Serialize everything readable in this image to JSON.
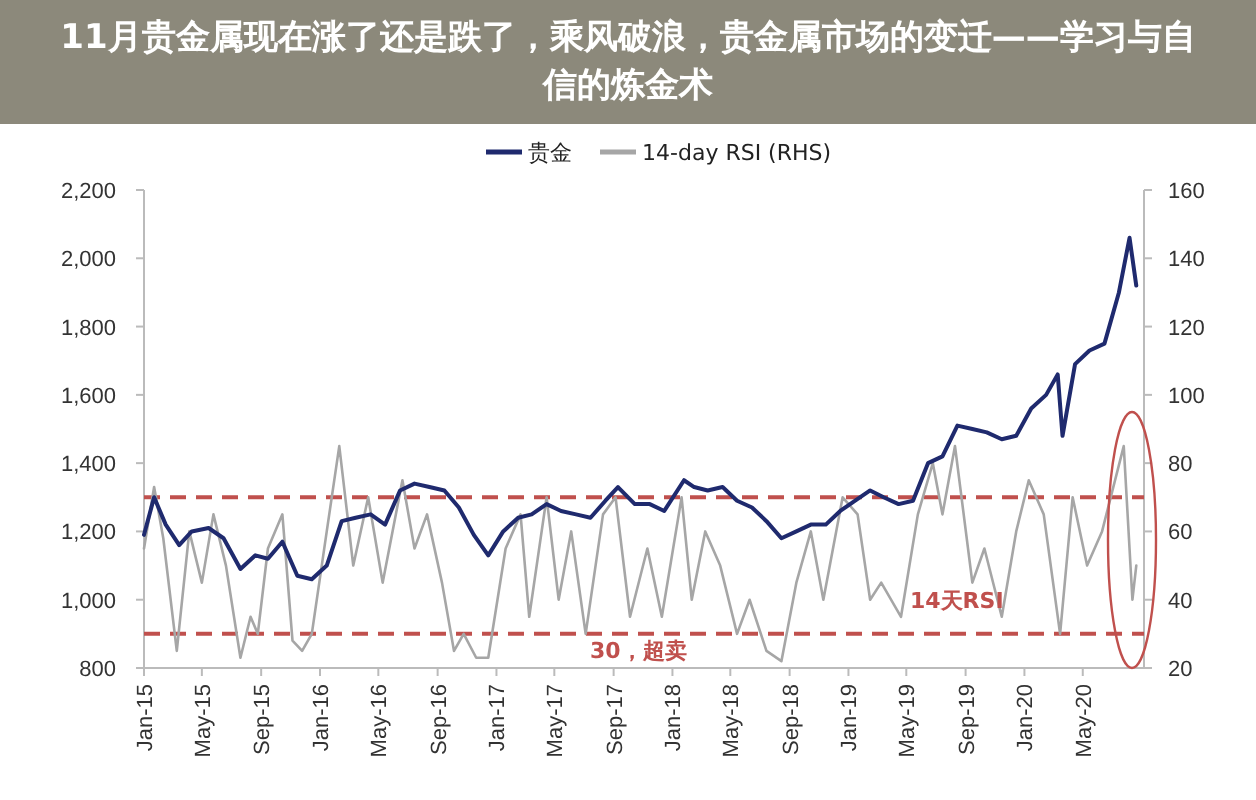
{
  "chart_data": {
    "type": "line",
    "title": "11月贵金属现在涨了还是跌了，乘风破浪，贵金属市场的变迁——学习与自信的炼金术",
    "series": [
      {
        "name": "贵金",
        "color": "#1f2a6e",
        "x": [
          "2015-01-01",
          "2015-01-22",
          "2015-02-15",
          "2015-03-15",
          "2015-04-10",
          "2015-05-15",
          "2015-06-15",
          "2015-07-20",
          "2015-08-20",
          "2015-09-15",
          "2015-10-15",
          "2015-11-15",
          "2015-12-15",
          "2016-01-15",
          "2016-02-15",
          "2016-03-15",
          "2016-04-15",
          "2016-05-15",
          "2016-06-15",
          "2016-07-15",
          "2016-08-15",
          "2016-09-15",
          "2016-10-15",
          "2016-11-15",
          "2016-12-15",
          "2017-01-15",
          "2017-02-15",
          "2017-03-15",
          "2017-04-15",
          "2017-05-15",
          "2017-06-15",
          "2017-07-15",
          "2017-08-15",
          "2017-09-10",
          "2017-10-15",
          "2017-11-15",
          "2017-12-15",
          "2018-01-25",
          "2018-02-15",
          "2018-03-15",
          "2018-04-15",
          "2018-05-15",
          "2018-06-15",
          "2018-07-15",
          "2018-08-15",
          "2018-09-15",
          "2018-10-15",
          "2018-11-15",
          "2018-12-15",
          "2019-01-15",
          "2019-02-15",
          "2019-03-15",
          "2019-04-15",
          "2019-05-15",
          "2019-06-15",
          "2019-07-15",
          "2019-08-15",
          "2019-09-15",
          "2019-10-15",
          "2019-11-15",
          "2019-12-15",
          "2020-01-15",
          "2020-02-15",
          "2020-03-10",
          "2020-03-20",
          "2020-04-15",
          "2020-05-15",
          "2020-06-15",
          "2020-07-15",
          "2020-08-06",
          "2020-08-20"
        ],
        "values": [
          1190,
          1300,
          1220,
          1160,
          1200,
          1210,
          1180,
          1090,
          1130,
          1120,
          1170,
          1070,
          1060,
          1100,
          1230,
          1240,
          1250,
          1220,
          1320,
          1340,
          1330,
          1320,
          1270,
          1190,
          1130,
          1200,
          1240,
          1250,
          1280,
          1260,
          1250,
          1240,
          1290,
          1330,
          1280,
          1280,
          1260,
          1350,
          1330,
          1320,
          1330,
          1290,
          1270,
          1230,
          1180,
          1200,
          1220,
          1220,
          1260,
          1290,
          1320,
          1300,
          1280,
          1290,
          1400,
          1420,
          1510,
          1500,
          1490,
          1470,
          1480,
          1560,
          1600,
          1660,
          1480,
          1690,
          1730,
          1750,
          1900,
          2060,
          1920
        ]
      },
      {
        "name": "14-day RSI (RHS)",
        "color": "#a6a6a6",
        "axis": "y2",
        "x": [
          "2015-01-01",
          "2015-01-22",
          "2015-02-10",
          "2015-03-10",
          "2015-04-05",
          "2015-05-01",
          "2015-05-25",
          "2015-06-20",
          "2015-07-20",
          "2015-08-10",
          "2015-08-25",
          "2015-09-15",
          "2015-10-15",
          "2015-11-05",
          "2015-11-25",
          "2015-12-15",
          "2016-01-15",
          "2016-02-10",
          "2016-03-10",
          "2016-04-10",
          "2016-05-10",
          "2016-06-20",
          "2016-07-15",
          "2016-08-10",
          "2016-09-10",
          "2016-10-05",
          "2016-10-25",
          "2016-11-20",
          "2016-12-15",
          "2017-01-20",
          "2017-02-20",
          "2017-03-10",
          "2017-04-15",
          "2017-05-10",
          "2017-06-05",
          "2017-07-05",
          "2017-08-10",
          "2017-09-05",
          "2017-10-05",
          "2017-11-10",
          "2017-12-10",
          "2018-01-20",
          "2018-02-10",
          "2018-03-10",
          "2018-04-10",
          "2018-05-15",
          "2018-06-10",
          "2018-07-15",
          "2018-08-15",
          "2018-09-15",
          "2018-10-15",
          "2018-11-10",
          "2018-12-20",
          "2019-01-20",
          "2019-02-15",
          "2019-03-10",
          "2019-04-20",
          "2019-05-25",
          "2019-06-25",
          "2019-07-15",
          "2019-08-10",
          "2019-09-15",
          "2019-10-10",
          "2019-11-15",
          "2019-12-15",
          "2020-01-10",
          "2020-02-10",
          "2020-03-15",
          "2020-04-10",
          "2020-05-10",
          "2020-06-10",
          "2020-07-25",
          "2020-08-12",
          "2020-08-20"
        ],
        "values": [
          55,
          73,
          58,
          25,
          60,
          45,
          65,
          50,
          23,
          35,
          30,
          55,
          65,
          28,
          25,
          30,
          60,
          85,
          50,
          70,
          45,
          75,
          55,
          65,
          45,
          25,
          30,
          23,
          23,
          55,
          65,
          35,
          70,
          40,
          60,
          30,
          65,
          70,
          35,
          55,
          35,
          70,
          40,
          60,
          50,
          30,
          40,
          25,
          22,
          45,
          60,
          40,
          70,
          65,
          40,
          45,
          35,
          65,
          80,
          65,
          85,
          45,
          55,
          35,
          60,
          75,
          65,
          30,
          70,
          50,
          60,
          85,
          40,
          50
        ]
      }
    ],
    "xlim": [
      "2015-01-01",
      "2020-09-05"
    ],
    "xticks": [
      {
        "value": "2015-01",
        "label": "Jan-15"
      },
      {
        "value": "2015-05",
        "label": "May-15"
      },
      {
        "value": "2015-09",
        "label": "Sep-15"
      },
      {
        "value": "2016-01",
        "label": "Jan-16"
      },
      {
        "value": "2016-05",
        "label": "May-16"
      },
      {
        "value": "2016-09",
        "label": "Sep-16"
      },
      {
        "value": "2017-01",
        "label": "Jan-17"
      },
      {
        "value": "2017-05",
        "label": "May-17"
      },
      {
        "value": "2017-09",
        "label": "Sep-17"
      },
      {
        "value": "2018-01",
        "label": "Jan-18"
      },
      {
        "value": "2018-05",
        "label": "May-18"
      },
      {
        "value": "2018-09",
        "label": "Sep-18"
      },
      {
        "value": "2019-01",
        "label": "Jan-19"
      },
      {
        "value": "2019-05",
        "label": "May-19"
      },
      {
        "value": "2019-09",
        "label": "Sep-19"
      },
      {
        "value": "2020-01",
        "label": "Jan-20"
      },
      {
        "value": "2020-05",
        "label": "May-20"
      }
    ],
    "ylim": [
      800,
      2200
    ],
    "yticks": [
      {
        "value": 800,
        "label": "800"
      },
      {
        "value": 1000,
        "label": "1,000"
      },
      {
        "value": 1200,
        "label": "1,200"
      },
      {
        "value": 1400,
        "label": "1,400"
      },
      {
        "value": 1600,
        "label": "1,600"
      },
      {
        "value": 1800,
        "label": "1,800"
      },
      {
        "value": 2000,
        "label": "2,000"
      },
      {
        "value": 2200,
        "label": "2,200"
      }
    ],
    "y2lim": [
      20,
      160
    ],
    "y2ticks": [
      20,
      40,
      60,
      80,
      100,
      120,
      140,
      160
    ],
    "ref_lines": [
      {
        "axis": "y2",
        "value": 70,
        "color": "#c0504d",
        "line_style": "dashed"
      },
      {
        "axis": "y2",
        "value": 30,
        "color": "#c0504d",
        "line_style": "dashed"
      }
    ],
    "annotations": [
      "14天RSI",
      "30，超卖"
    ],
    "legend": "top",
    "grid": false,
    "marker": "none",
    "line_style": "solid"
  }
}
